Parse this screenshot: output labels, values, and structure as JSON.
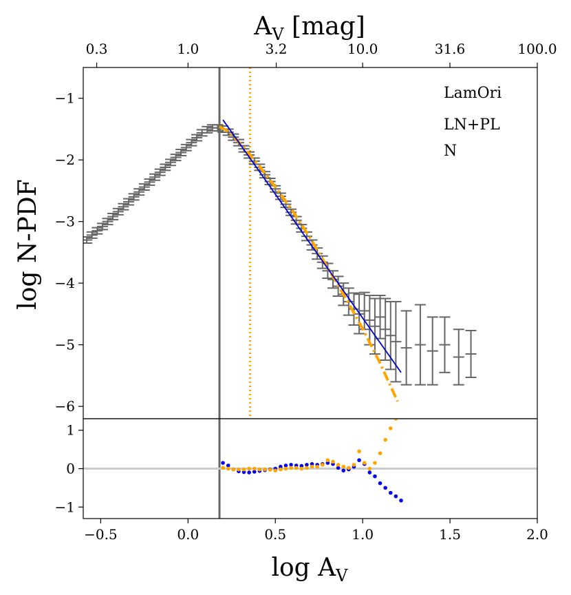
{
  "chart_data": [
    {
      "type": "scatter",
      "panel": "main",
      "xlabel": "log A",
      "xlabel_sub": "V",
      "ylabel": "log N-PDF",
      "top_axis_label": "A",
      "top_axis_label_sub": "V",
      "top_axis_unit": " [mag]",
      "xlim": [
        -0.6,
        2.0
      ],
      "ylim": [
        -6.2,
        -0.5
      ],
      "yticks": [
        -1,
        -2,
        -3,
        -4,
        -5,
        -6
      ],
      "ytick_labels": [
        "−1",
        "−2",
        "−3",
        "−4",
        "−5",
        "−6"
      ],
      "top_ticks": [
        0.3,
        1.0,
        3.2,
        10.0,
        31.6,
        100.0
      ],
      "top_tick_labels": [
        "0.3",
        "1.0",
        "3.2",
        "10.0",
        "31.6",
        "100.0"
      ],
      "annotations": [
        "LamOri",
        "LN+PL",
        "N"
      ],
      "vertical_lines": [
        {
          "name": "completeness-limit",
          "x": 0.18,
          "color": "#666666",
          "style": "solid"
        },
        {
          "name": "transition-point",
          "x": 0.355,
          "color": "#ffa500",
          "style": "dotted"
        }
      ],
      "series": [
        {
          "name": "N-PDF data",
          "color": "#666666",
          "style": "errorbar",
          "points": [
            {
              "x": -0.58,
              "y": -3.3,
              "err": 0.05
            },
            {
              "x": -0.55,
              "y": -3.22,
              "err": 0.05
            },
            {
              "x": -0.52,
              "y": -3.15,
              "err": 0.05
            },
            {
              "x": -0.49,
              "y": -3.08,
              "err": 0.05
            },
            {
              "x": -0.46,
              "y": -3.0,
              "err": 0.05
            },
            {
              "x": -0.43,
              "y": -2.92,
              "err": 0.05
            },
            {
              "x": -0.4,
              "y": -2.84,
              "err": 0.05
            },
            {
              "x": -0.37,
              "y": -2.76,
              "err": 0.05
            },
            {
              "x": -0.34,
              "y": -2.68,
              "err": 0.05
            },
            {
              "x": -0.31,
              "y": -2.6,
              "err": 0.05
            },
            {
              "x": -0.28,
              "y": -2.52,
              "err": 0.05
            },
            {
              "x": -0.25,
              "y": -2.44,
              "err": 0.05
            },
            {
              "x": -0.22,
              "y": -2.36,
              "err": 0.05
            },
            {
              "x": -0.19,
              "y": -2.28,
              "err": 0.05
            },
            {
              "x": -0.16,
              "y": -2.2,
              "err": 0.05
            },
            {
              "x": -0.13,
              "y": -2.12,
              "err": 0.05
            },
            {
              "x": -0.1,
              "y": -2.04,
              "err": 0.05
            },
            {
              "x": -0.07,
              "y": -1.96,
              "err": 0.05
            },
            {
              "x": -0.04,
              "y": -1.88,
              "err": 0.05
            },
            {
              "x": -0.01,
              "y": -1.8,
              "err": 0.05
            },
            {
              "x": 0.02,
              "y": -1.72,
              "err": 0.05
            },
            {
              "x": 0.05,
              "y": -1.64,
              "err": 0.05
            },
            {
              "x": 0.08,
              "y": -1.56,
              "err": 0.05
            },
            {
              "x": 0.11,
              "y": -1.51,
              "err": 0.05
            },
            {
              "x": 0.14,
              "y": -1.48,
              "err": 0.05
            },
            {
              "x": 0.17,
              "y": -1.48,
              "err": 0.05
            },
            {
              "x": 0.2,
              "y": -1.5,
              "err": 0.05
            },
            {
              "x": 0.23,
              "y": -1.55,
              "err": 0.05
            },
            {
              "x": 0.26,
              "y": -1.63,
              "err": 0.05
            },
            {
              "x": 0.29,
              "y": -1.72,
              "err": 0.05
            },
            {
              "x": 0.32,
              "y": -1.82,
              "err": 0.05
            },
            {
              "x": 0.35,
              "y": -1.92,
              "err": 0.05
            },
            {
              "x": 0.38,
              "y": -2.02,
              "err": 0.05
            },
            {
              "x": 0.41,
              "y": -2.12,
              "err": 0.05
            },
            {
              "x": 0.44,
              "y": -2.24,
              "err": 0.05
            },
            {
              "x": 0.47,
              "y": -2.35,
              "err": 0.05
            },
            {
              "x": 0.5,
              "y": -2.47,
              "err": 0.05
            },
            {
              "x": 0.53,
              "y": -2.59,
              "err": 0.05
            },
            {
              "x": 0.56,
              "y": -2.72,
              "err": 0.05
            },
            {
              "x": 0.59,
              "y": -2.85,
              "err": 0.05
            },
            {
              "x": 0.62,
              "y": -2.98,
              "err": 0.06
            },
            {
              "x": 0.65,
              "y": -3.11,
              "err": 0.06
            },
            {
              "x": 0.68,
              "y": -3.24,
              "err": 0.07
            },
            {
              "x": 0.71,
              "y": -3.38,
              "err": 0.08
            },
            {
              "x": 0.74,
              "y": -3.52,
              "err": 0.09
            },
            {
              "x": 0.77,
              "y": -3.66,
              "err": 0.1
            },
            {
              "x": 0.8,
              "y": -3.8,
              "err": 0.12
            },
            {
              "x": 0.83,
              "y": -3.94,
              "err": 0.14
            },
            {
              "x": 0.86,
              "y": -4.05,
              "err": 0.16
            },
            {
              "x": 0.89,
              "y": -4.18,
              "err": 0.18
            },
            {
              "x": 0.92,
              "y": -4.3,
              "err": 0.22
            },
            {
              "x": 0.95,
              "y": -4.42,
              "err": 0.26
            },
            {
              "x": 0.98,
              "y": -4.5,
              "err": 0.32
            },
            {
              "x": 1.01,
              "y": -4.45,
              "err": 0.3
            },
            {
              "x": 1.04,
              "y": -4.6,
              "err": 0.4
            },
            {
              "x": 1.07,
              "y": -4.7,
              "err": 0.45
            },
            {
              "x": 1.1,
              "y": -4.55,
              "err": 0.35
            },
            {
              "x": 1.13,
              "y": -4.75,
              "err": 0.5
            },
            {
              "x": 1.16,
              "y": -4.85,
              "err": 0.55
            },
            {
              "x": 1.19,
              "y": -4.95,
              "err": 0.65
            },
            {
              "x": 1.25,
              "y": -5.05,
              "err": 0.6
            },
            {
              "x": 1.33,
              "y": -5.0,
              "err": 0.65
            },
            {
              "x": 1.4,
              "y": -5.1,
              "err": 0.55
            },
            {
              "x": 1.47,
              "y": -5.0,
              "err": 0.45
            },
            {
              "x": 1.55,
              "y": -5.2,
              "err": 0.45
            },
            {
              "x": 1.62,
              "y": -5.15,
              "err": 0.38
            }
          ]
        },
        {
          "name": "LN+PL fit",
          "color": "#ffa500",
          "style": "dashdot",
          "points": [
            {
              "x": 0.18,
              "y": -1.46
            },
            {
              "x": 0.22,
              "y": -1.52
            },
            {
              "x": 0.26,
              "y": -1.62
            },
            {
              "x": 0.3,
              "y": -1.74
            },
            {
              "x": 0.35,
              "y": -1.9
            },
            {
              "x": 0.4,
              "y": -2.07
            },
            {
              "x": 0.5,
              "y": -2.44
            },
            {
              "x": 0.6,
              "y": -2.83
            },
            {
              "x": 0.7,
              "y": -3.27
            },
            {
              "x": 0.8,
              "y": -3.75
            },
            {
              "x": 0.9,
              "y": -4.23
            },
            {
              "x": 1.0,
              "y": -4.74
            },
            {
              "x": 1.1,
              "y": -5.3
            },
            {
              "x": 1.2,
              "y": -5.92
            }
          ]
        },
        {
          "name": "PL fit",
          "color": "#0000cc",
          "style": "solid",
          "points": [
            {
              "x": 0.2,
              "y": -1.35
            },
            {
              "x": 1.22,
              "y": -5.45
            }
          ]
        }
      ]
    },
    {
      "type": "scatter",
      "panel": "residuals",
      "xlim": [
        -0.6,
        2.0
      ],
      "ylim": [
        -1.3,
        1.3
      ],
      "xticks": [
        -0.5,
        0.0,
        0.5,
        1.0,
        1.5,
        2.0
      ],
      "xtick_labels": [
        "−0.5",
        "0.0",
        "0.5",
        "1.0",
        "1.5",
        "2.0"
      ],
      "yticks": [
        1,
        0,
        -1
      ],
      "ytick_labels": [
        "1",
        "0",
        "−1"
      ],
      "reference_line": {
        "y": 0,
        "color": "#cccccc"
      },
      "series": [
        {
          "name": "PL residuals",
          "color": "#0000ee",
          "points": [
            {
              "x": 0.2,
              "y": 0.15
            },
            {
              "x": 0.23,
              "y": 0.08
            },
            {
              "x": 0.26,
              "y": -0.02
            },
            {
              "x": 0.29,
              "y": -0.07
            },
            {
              "x": 0.32,
              "y": -0.09
            },
            {
              "x": 0.35,
              "y": -0.1
            },
            {
              "x": 0.38,
              "y": -0.08
            },
            {
              "x": 0.41,
              "y": -0.06
            },
            {
              "x": 0.44,
              "y": -0.04
            },
            {
              "x": 0.47,
              "y": -0.02
            },
            {
              "x": 0.5,
              "y": 0.0
            },
            {
              "x": 0.53,
              "y": 0.05
            },
            {
              "x": 0.56,
              "y": 0.08
            },
            {
              "x": 0.59,
              "y": 0.1
            },
            {
              "x": 0.62,
              "y": 0.08
            },
            {
              "x": 0.65,
              "y": 0.07
            },
            {
              "x": 0.68,
              "y": 0.1
            },
            {
              "x": 0.71,
              "y": 0.12
            },
            {
              "x": 0.74,
              "y": 0.1
            },
            {
              "x": 0.77,
              "y": 0.12
            },
            {
              "x": 0.8,
              "y": 0.15
            },
            {
              "x": 0.83,
              "y": 0.12
            },
            {
              "x": 0.86,
              "y": 0.02
            },
            {
              "x": 0.89,
              "y": -0.05
            },
            {
              "x": 0.92,
              "y": -0.02
            },
            {
              "x": 0.95,
              "y": 0.05
            },
            {
              "x": 0.98,
              "y": 0.22
            },
            {
              "x": 1.01,
              "y": 0.12
            },
            {
              "x": 1.04,
              "y": -0.1
            },
            {
              "x": 1.07,
              "y": -0.2
            },
            {
              "x": 1.1,
              "y": -0.38
            },
            {
              "x": 1.13,
              "y": -0.5
            },
            {
              "x": 1.16,
              "y": -0.63
            },
            {
              "x": 1.19,
              "y": -0.72
            },
            {
              "x": 1.22,
              "y": -0.83
            }
          ]
        },
        {
          "name": "LN+PL residuals",
          "color": "#ffa500",
          "points": [
            {
              "x": 0.2,
              "y": 0.02
            },
            {
              "x": 0.23,
              "y": 0.0
            },
            {
              "x": 0.26,
              "y": -0.02
            },
            {
              "x": 0.29,
              "y": -0.02
            },
            {
              "x": 0.32,
              "y": -0.02
            },
            {
              "x": 0.35,
              "y": 0.0
            },
            {
              "x": 0.38,
              "y": 0.0
            },
            {
              "x": 0.41,
              "y": -0.02
            },
            {
              "x": 0.44,
              "y": -0.02
            },
            {
              "x": 0.47,
              "y": -0.03
            },
            {
              "x": 0.5,
              "y": -0.05
            },
            {
              "x": 0.53,
              "y": -0.02
            },
            {
              "x": 0.56,
              "y": 0.0
            },
            {
              "x": 0.59,
              "y": 0.02
            },
            {
              "x": 0.62,
              "y": 0.02
            },
            {
              "x": 0.65,
              "y": 0.0
            },
            {
              "x": 0.68,
              "y": 0.02
            },
            {
              "x": 0.71,
              "y": 0.05
            },
            {
              "x": 0.74,
              "y": 0.05
            },
            {
              "x": 0.77,
              "y": 0.1
            },
            {
              "x": 0.8,
              "y": 0.22
            },
            {
              "x": 0.83,
              "y": 0.18
            },
            {
              "x": 0.86,
              "y": 0.1
            },
            {
              "x": 0.89,
              "y": 0.05
            },
            {
              "x": 0.92,
              "y": 0.02
            },
            {
              "x": 0.95,
              "y": 0.1
            },
            {
              "x": 0.98,
              "y": 0.45
            },
            {
              "x": 1.01,
              "y": 0.15
            },
            {
              "x": 1.04,
              "y": 0.0
            },
            {
              "x": 1.07,
              "y": 0.15
            },
            {
              "x": 1.1,
              "y": 0.4
            },
            {
              "x": 1.13,
              "y": 0.75
            },
            {
              "x": 1.16,
              "y": 1.05
            },
            {
              "x": 1.19,
              "y": 1.3
            }
          ]
        }
      ]
    }
  ]
}
